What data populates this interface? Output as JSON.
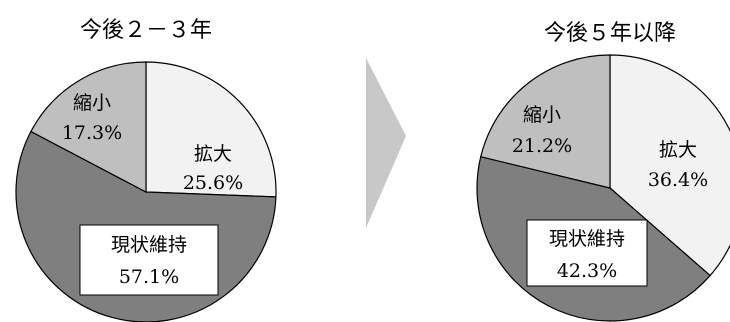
{
  "chart_data": [
    {
      "type": "pie",
      "title": "今後２－３年",
      "slices": [
        {
          "label": "拡大",
          "value": "25.6%",
          "pct": 25.6,
          "color": "#f2f2f2"
        },
        {
          "label": "現状維持",
          "value": "57.1%",
          "pct": 57.1,
          "color": "#7f7f7f"
        },
        {
          "label": "縮小",
          "value": "17.3%",
          "pct": 17.3,
          "color": "#bfbfbf"
        }
      ]
    },
    {
      "type": "pie",
      "title": "今後５年以降",
      "slices": [
        {
          "label": "拡大",
          "value": "36.4%",
          "pct": 36.4,
          "color": "#f2f2f2"
        },
        {
          "label": "現状維持",
          "value": "42.3%",
          "pct": 42.3,
          "color": "#7f7f7f"
        },
        {
          "label": "縮小",
          "value": "21.2%",
          "pct": 21.2,
          "color": "#bfbfbf"
        }
      ]
    }
  ],
  "arrow_color": "#c8c8c8"
}
